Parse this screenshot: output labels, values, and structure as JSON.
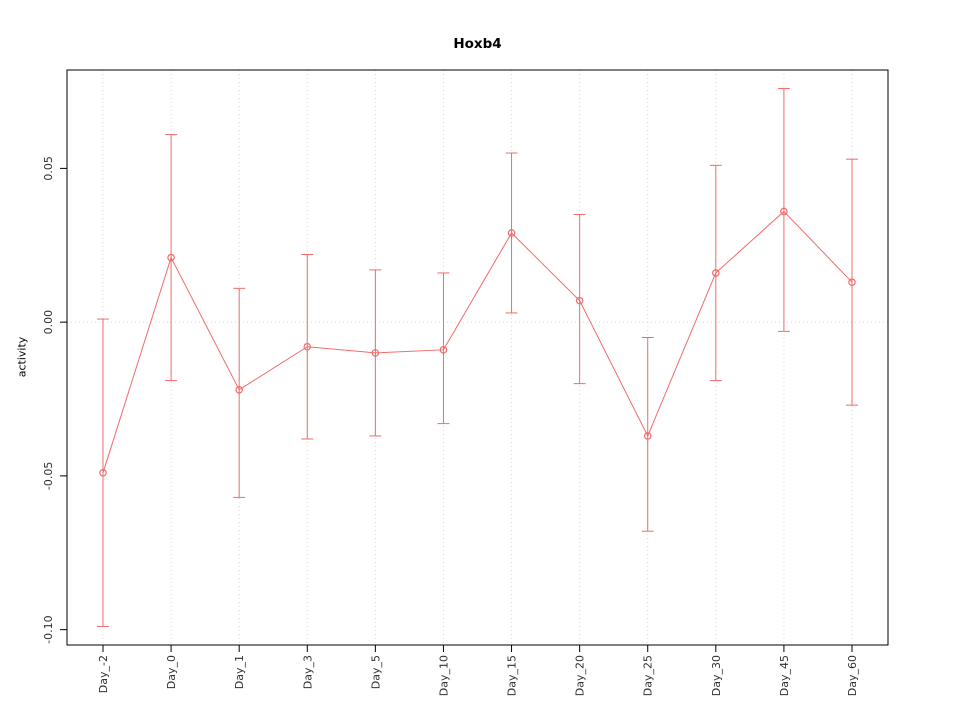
{
  "chart": {
    "title": "Hoxb4",
    "ylabel": "activity",
    "accent_color": "#f26b6b",
    "grid_color": "#d8d8d8",
    "axis_color": "#000000",
    "tick_label_color": "#303030"
  },
  "chart_data": {
    "type": "line",
    "title": "Hoxb4",
    "xlabel": "",
    "ylabel": "activity",
    "categories": [
      "Day_-2",
      "Day_0",
      "Day_1",
      "Day_3",
      "Day_5",
      "Day_10",
      "Day_15",
      "Day_20",
      "Day_25",
      "Day_30",
      "Day_45",
      "Day_60"
    ],
    "values": [
      -0.049,
      0.021,
      -0.022,
      -0.008,
      -0.01,
      -0.009,
      0.029,
      0.007,
      -0.037,
      0.016,
      0.036,
      0.013
    ],
    "error_low": [
      -0.099,
      -0.019,
      -0.057,
      -0.038,
      -0.037,
      -0.033,
      0.003,
      -0.02,
      -0.068,
      -0.019,
      -0.003,
      -0.027
    ],
    "error_high": [
      0.001,
      0.061,
      0.011,
      0.022,
      0.017,
      0.016,
      0.055,
      0.035,
      -0.005,
      0.051,
      0.076,
      0.053
    ],
    "ylim": [
      -0.105,
      0.082
    ],
    "yticks": [
      -0.1,
      -0.05,
      0.0,
      0.05
    ],
    "grid": true,
    "zero_line": true,
    "marker": "open-circle",
    "legend": "none"
  }
}
